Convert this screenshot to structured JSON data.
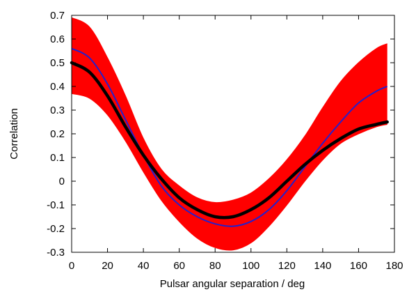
{
  "chart_data": {
    "type": "line",
    "title": "",
    "xlabel": "Pulsar angular separation / deg",
    "ylabel": "Correlation",
    "xlim": [
      0,
      180
    ],
    "ylim": [
      -0.3,
      0.7
    ],
    "xticks": [
      0,
      20,
      40,
      60,
      80,
      100,
      120,
      140,
      160,
      180
    ],
    "yticks": [
      -0.3,
      -0.2,
      -0.1,
      0,
      0.1,
      0.2,
      0.3,
      0.4,
      0.5,
      0.6,
      0.7
    ],
    "grid": false,
    "series": [
      {
        "role": "realizations band upper envelope",
        "color": "#ff0000",
        "x": [
          0,
          10,
          20,
          30,
          40,
          50,
          60,
          70,
          80,
          90,
          100,
          110,
          120,
          130,
          140,
          150,
          160,
          170,
          176
        ],
        "y": [
          0.69,
          0.65,
          0.52,
          0.36,
          0.18,
          0.05,
          -0.02,
          -0.07,
          -0.09,
          -0.08,
          -0.05,
          0.01,
          0.09,
          0.19,
          0.31,
          0.42,
          0.5,
          0.56,
          0.58
        ]
      },
      {
        "role": "realizations band lower envelope",
        "color": "#ff0000",
        "x": [
          0,
          10,
          20,
          30,
          40,
          50,
          60,
          70,
          80,
          90,
          100,
          110,
          120,
          130,
          140,
          150,
          160,
          170,
          176
        ],
        "y": [
          0.37,
          0.35,
          0.28,
          0.17,
          0.04,
          -0.08,
          -0.17,
          -0.24,
          -0.28,
          -0.29,
          -0.26,
          -0.19,
          -0.1,
          0.0,
          0.09,
          0.16,
          0.2,
          0.23,
          0.24
        ]
      },
      {
        "role": "blue curve",
        "color": "#2020d0",
        "x": [
          0,
          10,
          20,
          30,
          40,
          50,
          60,
          70,
          80,
          90,
          100,
          110,
          120,
          130,
          140,
          150,
          160,
          170,
          176
        ],
        "y": [
          0.56,
          0.52,
          0.41,
          0.26,
          0.11,
          -0.02,
          -0.1,
          -0.15,
          -0.18,
          -0.19,
          -0.17,
          -0.12,
          -0.04,
          0.06,
          0.16,
          0.25,
          0.33,
          0.38,
          0.4
        ]
      },
      {
        "role": "black curve",
        "color": "#000000",
        "x": [
          0,
          10,
          20,
          30,
          40,
          50,
          60,
          70,
          80,
          90,
          100,
          110,
          120,
          130,
          140,
          150,
          160,
          170,
          176
        ],
        "y": [
          0.5,
          0.46,
          0.36,
          0.23,
          0.11,
          0.01,
          -0.07,
          -0.12,
          -0.15,
          -0.15,
          -0.12,
          -0.07,
          0.0,
          0.07,
          0.13,
          0.18,
          0.22,
          0.24,
          0.25
        ]
      }
    ]
  }
}
